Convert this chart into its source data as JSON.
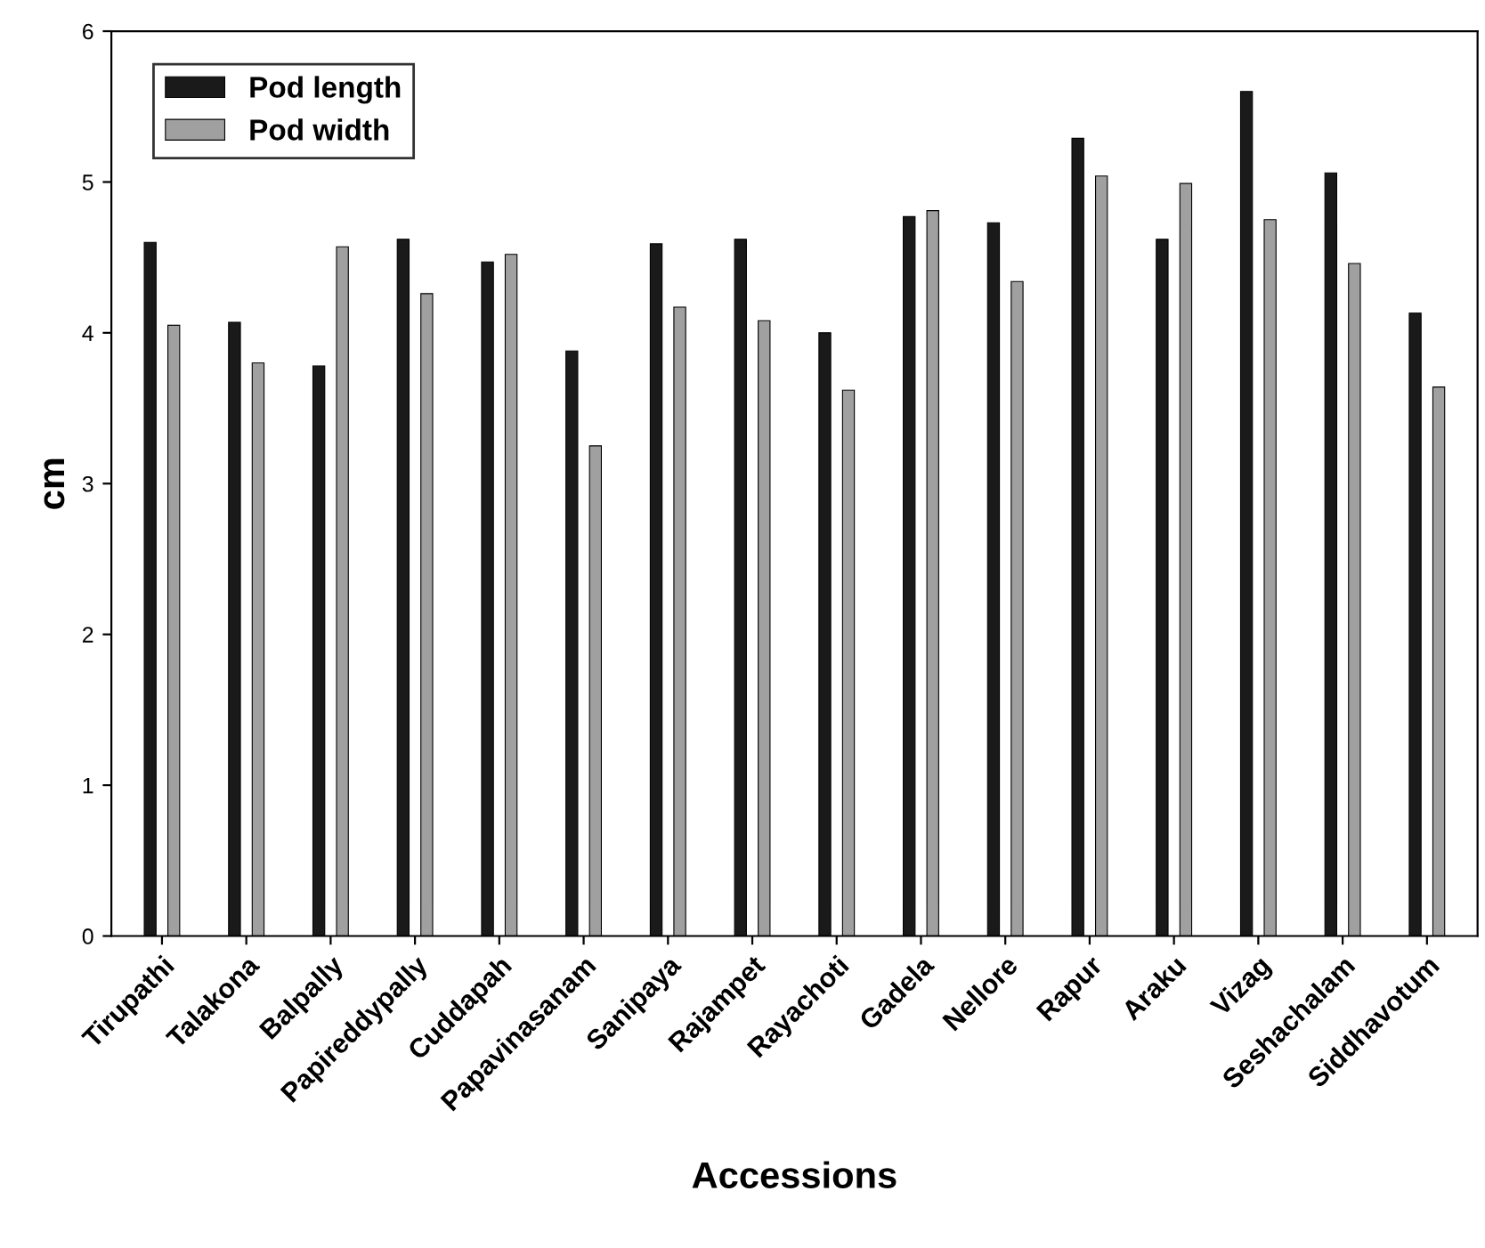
{
  "chart_data": {
    "type": "bar",
    "xlabel": "Accessions",
    "ylabel": "cm",
    "categories": [
      "Tirupathi",
      "Talakona",
      "Balpally",
      "Papireddypally",
      "Cuddapah",
      "Papavinasanam",
      "Sanipaya",
      "Rajampet",
      "Rayachoti",
      "Gadela",
      "Nellore",
      "Rapur",
      "Araku",
      "Vizag",
      "Seshachalam",
      "Siddhavotum"
    ],
    "series": [
      {
        "name": "Pod length",
        "color": "#1a1a1a",
        "values": [
          4.6,
          4.07,
          3.78,
          4.62,
          4.47,
          3.88,
          4.59,
          4.62,
          4.0,
          4.77,
          4.73,
          5.29,
          4.62,
          5.6,
          5.06,
          4.13
        ]
      },
      {
        "name": "Pod width",
        "color": "#a0a0a0",
        "values": [
          4.05,
          3.8,
          4.57,
          4.26,
          4.52,
          3.25,
          4.17,
          4.08,
          3.62,
          4.81,
          4.34,
          5.04,
          4.99,
          4.75,
          4.46,
          3.64
        ]
      }
    ],
    "ylim": [
      0,
      6
    ],
    "yticks": [
      0,
      1,
      2,
      3,
      4,
      5,
      6
    ],
    "grid": false,
    "legend": "top left"
  }
}
